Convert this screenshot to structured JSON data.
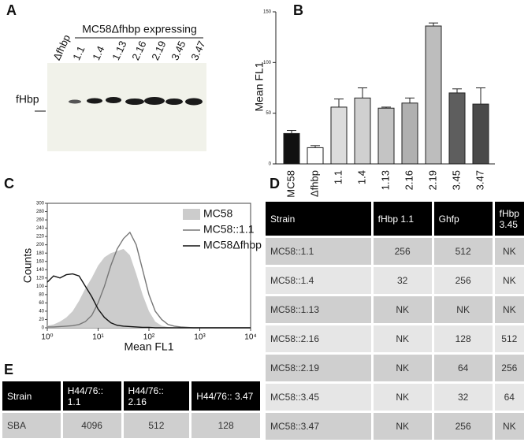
{
  "panel_labels": [
    "A",
    "B",
    "C",
    "D",
    "E"
  ],
  "panel_a": {
    "title": "MC58Δfhbp expressing",
    "lanes": [
      "Δfhbp",
      "1.1",
      "1.4",
      "1.13",
      "2.16",
      "2.19",
      "3.45",
      "3.47"
    ],
    "band_label": "fHbp"
  },
  "chart_data": [
    {
      "type": "bar",
      "y_label": "Mean FL1",
      "categories": [
        "MC58",
        "Δfhbp",
        "1.1",
        "1.4",
        "1.13",
        "2.16",
        "2.19",
        "3.45",
        "3.47"
      ],
      "values": [
        30,
        16,
        56,
        65,
        55,
        60,
        136,
        70,
        59
      ],
      "errors": [
        3,
        2,
        8,
        10,
        1,
        5,
        3,
        4,
        16
      ],
      "colors": [
        "#111111",
        "#ffffff",
        "#dcdcdc",
        "#d0d0d0",
        "#c4c4c4",
        "#b0b0b0",
        "#bdbdbd",
        "#5e5e5e",
        "#4a4a4a"
      ],
      "ylim": [
        0,
        150
      ],
      "yticks": [
        0,
        50,
        100,
        150
      ]
    },
    {
      "type": "line",
      "y_label": "Counts",
      "x_label": "Mean FL1",
      "xscale": "log",
      "x": [
        1,
        1.33,
        1.78,
        2.37,
        3.16,
        4.22,
        5.62,
        7.5,
        10,
        13.3,
        17.8,
        23.7,
        31.6,
        42.2,
        56.2,
        75,
        100,
        133,
        178,
        237,
        316,
        422,
        562,
        750,
        1000,
        1334,
        1778,
        2371,
        3162,
        4217,
        5623,
        7499,
        10000
      ],
      "series": [
        {
          "name": "MC58",
          "color": "#cccccc",
          "style": "area",
          "values": [
            5,
            8,
            15,
            25,
            40,
            65,
            95,
            120,
            150,
            170,
            180,
            185,
            190,
            175,
            130,
            80,
            40,
            15,
            5,
            2,
            1,
            0,
            0,
            0,
            0,
            0,
            0,
            0,
            0,
            0,
            0,
            0,
            0
          ]
        },
        {
          "name": "MC58::1.1",
          "color": "#777777",
          "style": "line",
          "values": [
            2,
            2,
            3,
            4,
            5,
            8,
            15,
            30,
            60,
            100,
            150,
            190,
            215,
            230,
            200,
            140,
            80,
            40,
            20,
            8,
            4,
            2,
            1,
            0,
            0,
            0,
            0,
            0,
            0,
            0,
            0,
            0,
            0
          ]
        },
        {
          "name": "MC58Δfhbp",
          "color": "#111111",
          "style": "line",
          "values": [
            110,
            125,
            120,
            128,
            130,
            125,
            100,
            75,
            45,
            25,
            12,
            6,
            4,
            3,
            2,
            1,
            1,
            0,
            0,
            0,
            0,
            0,
            0,
            0,
            0,
            0,
            0,
            0,
            0,
            0,
            0,
            0,
            0
          ]
        }
      ],
      "xlim": [
        1,
        10000
      ],
      "xticks": [
        {
          "value": 1,
          "label": "10⁰"
        },
        {
          "value": 10,
          "label": "10¹"
        },
        {
          "value": 100,
          "label": "10²"
        },
        {
          "value": 1000,
          "label": "10³"
        },
        {
          "value": 10000,
          "label": "10⁴"
        }
      ],
      "ylim": [
        0,
        300
      ],
      "yticks": [
        0,
        20,
        40,
        60,
        80,
        100,
        120,
        140,
        160,
        180,
        200,
        220,
        240,
        260,
        280,
        300
      ]
    }
  ],
  "table_d": {
    "header": [
      "Strain",
      "fHbp 1.1",
      "Ghfp",
      "fHbp 3.45"
    ],
    "rows": [
      [
        "MC58::1.1",
        "256",
        "512",
        "NK"
      ],
      [
        "MC58::1.4",
        "32",
        "256",
        "NK"
      ],
      [
        "MC58::1.13",
        "NK",
        "NK",
        "NK"
      ],
      [
        "MC58::2.16",
        "NK",
        "128",
        "512"
      ],
      [
        "MC58::2.19",
        "NK",
        "64",
        "256"
      ],
      [
        "MC58::3.45",
        "NK",
        "32",
        "64"
      ],
      [
        "MC58::3.47",
        "NK",
        "256",
        "NK"
      ]
    ]
  },
  "table_e": {
    "header": [
      "Strain",
      "H44/76:: 1.1",
      "H44/76:: 2.16",
      "H44/76:: 3.47"
    ],
    "rows": [
      [
        "SBA",
        "4096",
        "512",
        "128"
      ]
    ]
  }
}
